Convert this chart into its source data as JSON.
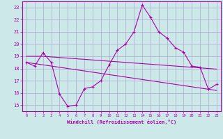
{
  "xlabel": "Windchill (Refroidissement éolien,°C)",
  "background_color": "#cce8e8",
  "grid_color": "#aaaacc",
  "line_color": "#aa00aa",
  "x": [
    0,
    1,
    2,
    3,
    4,
    5,
    6,
    7,
    8,
    9,
    10,
    11,
    12,
    13,
    14,
    15,
    16,
    17,
    18,
    19,
    20,
    21,
    22,
    23
  ],
  "y_main": [
    18.5,
    18.2,
    19.3,
    18.5,
    15.9,
    14.9,
    15.0,
    16.35,
    16.5,
    17.0,
    18.3,
    19.5,
    20.0,
    21.0,
    23.2,
    22.2,
    21.0,
    20.5,
    19.7,
    19.35,
    18.2,
    18.1,
    16.3,
    16.7
  ],
  "y_trend1": [
    19.0,
    19.0,
    19.0,
    18.95,
    18.9,
    18.85,
    18.8,
    18.75,
    18.7,
    18.65,
    18.6,
    18.55,
    18.5,
    18.45,
    18.4,
    18.35,
    18.3,
    18.25,
    18.2,
    18.15,
    18.1,
    18.05,
    18.0,
    17.95
  ],
  "y_trend2": [
    18.5,
    18.4,
    18.3,
    18.2,
    18.1,
    18.0,
    17.9,
    17.8,
    17.7,
    17.6,
    17.5,
    17.4,
    17.3,
    17.2,
    17.1,
    17.0,
    16.9,
    16.8,
    16.7,
    16.6,
    16.5,
    16.4,
    16.3,
    16.2
  ],
  "ylim": [
    14.5,
    23.5
  ],
  "yticks": [
    15,
    16,
    17,
    18,
    19,
    20,
    21,
    22,
    23
  ],
  "xlim": [
    -0.5,
    23.5
  ],
  "xticks": [
    0,
    1,
    2,
    3,
    4,
    5,
    6,
    7,
    8,
    9,
    10,
    11,
    12,
    13,
    14,
    15,
    16,
    17,
    18,
    19,
    20,
    21,
    22,
    23
  ]
}
